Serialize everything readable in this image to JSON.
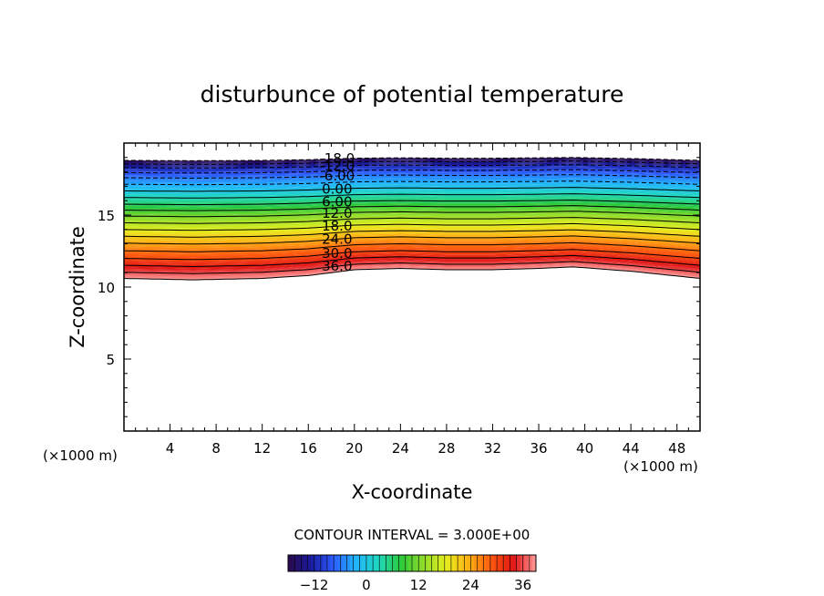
{
  "chart_data": {
    "type": "contour",
    "title": "disturbunce of potential temperature",
    "xlabel": "X-coordinate",
    "ylabel": "Z-coordinate",
    "x_unit_left": "(×1000 m)",
    "x_unit_right": "(×1000 m)",
    "xlim": [
      0,
      50
    ],
    "ylim": [
      0,
      20
    ],
    "x_ticks": [
      4,
      8,
      12,
      16,
      20,
      24,
      28,
      32,
      36,
      40,
      44,
      48
    ],
    "x_tick_labels": [
      "4",
      "8",
      "12",
      "16",
      "20",
      "24",
      "28",
      "32",
      "36",
      "40",
      "44",
      "48"
    ],
    "y_ticks": [
      5,
      10,
      15
    ],
    "y_tick_labels": [
      "5",
      "10",
      "15"
    ],
    "contour_interval_text": "CONTOUR INTERVAL = 3.000E+00",
    "contour_interval": 3,
    "field_min": -18,
    "field_max": 39,
    "contour_labels": [
      "-18.0",
      "-12.0",
      "-6.00",
      "0.00",
      "6.00",
      "12.0",
      "18.0",
      "24.0",
      "30.0",
      "36.0"
    ],
    "contour_levels": [
      {
        "value": -18,
        "z": 18.9
      },
      {
        "value": -12,
        "z": 18.4
      },
      {
        "value": -6,
        "z": 17.7
      },
      {
        "value": 0,
        "z": 16.8
      },
      {
        "value": 6,
        "z": 15.9
      },
      {
        "value": 12,
        "z": 15.1
      },
      {
        "value": 18,
        "z": 14.2
      },
      {
        "value": 24,
        "z": 13.3
      },
      {
        "value": 30,
        "z": 12.3
      },
      {
        "value": 36,
        "z": 11.4
      },
      {
        "value": 39,
        "z": 11.0
      }
    ],
    "lower_boundary_profile": {
      "x": [
        0,
        6,
        12,
        16,
        20,
        24,
        28,
        32,
        36,
        39,
        44,
        50
      ],
      "z": [
        10.6,
        10.5,
        10.6,
        10.8,
        11.2,
        11.3,
        11.2,
        11.2,
        11.3,
        11.4,
        11.1,
        10.6
      ]
    },
    "colorbar": {
      "tick_values": [
        -12,
        0,
        12,
        24,
        36
      ],
      "tick_labels": [
        "−12",
        "0",
        "12",
        "24",
        "36"
      ],
      "colors": [
        "#2a0a4a",
        "#1a1a9c",
        "#2b5cff",
        "#21b4ff",
        "#20d8c0",
        "#2ac93a",
        "#8fdc2a",
        "#e6ee1e",
        "#ffb214",
        "#ff5a10",
        "#e01414",
        "#ff9a9a"
      ]
    },
    "grid": false,
    "legend": "none"
  }
}
